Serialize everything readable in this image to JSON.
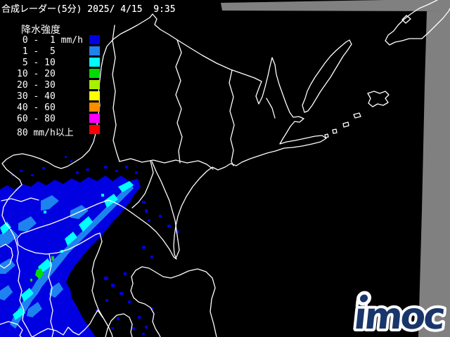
{
  "title": "合成レーダー(5分) 2025/ 4/15  9:35",
  "legend": {
    "heading": "降水強度",
    "items": [
      {
        "label": " 0 -  1 mm/h",
        "color": "#0000E0"
      },
      {
        "label": " 1 -  5",
        "color": "#1E82F0"
      },
      {
        "label": " 5 - 10",
        "color": "#00FFFF"
      },
      {
        "label": "10 - 20",
        "color": "#00DC00"
      },
      {
        "label": "20 - 30",
        "color": "#A8F000"
      },
      {
        "label": "30 - 40",
        "color": "#FFFF00"
      },
      {
        "label": "40 - 60",
        "color": "#FF8C00"
      },
      {
        "label": "60 - 80",
        "color": "#FF00FF"
      },
      {
        "label": "80 mm/h以上",
        "color": "#FF0000"
      }
    ]
  },
  "map": {
    "sea_color": "#000000",
    "coastline_color": "#FFFFFF",
    "no_data_color": "#808080"
  },
  "logo": {
    "text": "imoc",
    "color": "#19366B",
    "outline": "#FFFFFF"
  }
}
